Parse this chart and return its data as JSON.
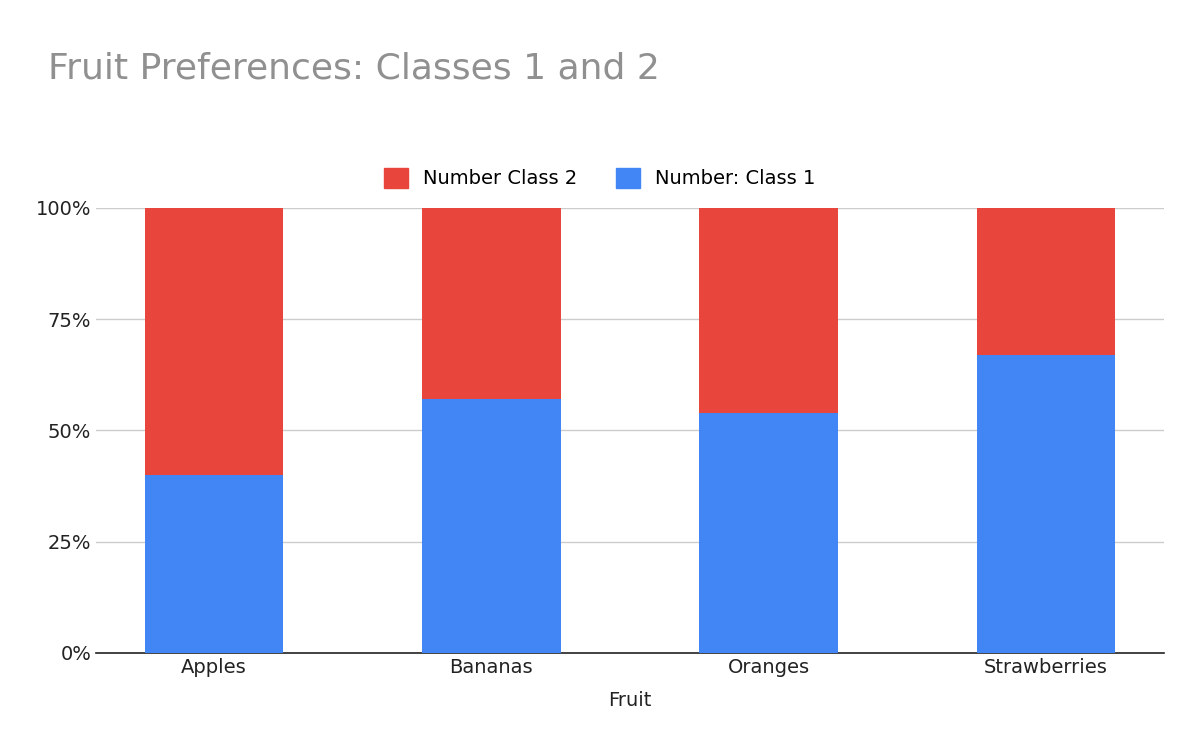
{
  "categories": [
    "Apples",
    "Bananas",
    "Oranges",
    "Strawberries"
  ],
  "class1_pct": [
    40,
    57,
    54,
    67
  ],
  "class2_pct": [
    60,
    43,
    46,
    33
  ],
  "color_class1": "#4285F4",
  "color_class2": "#E8453C",
  "title": "Fruit Preferences: Classes 1 and 2",
  "xlabel": "Fruit",
  "ylabel": "",
  "legend_class2": "Number Class 2",
  "legend_class1": "Number: Class 1",
  "title_color": "#909090",
  "title_fontsize": 26,
  "label_fontsize": 14,
  "tick_fontsize": 14,
  "legend_fontsize": 14,
  "background_color": "#ffffff",
  "yticks": [
    0,
    25,
    50,
    75,
    100
  ],
  "ytick_labels": [
    "0%",
    "25%",
    "50%",
    "75%",
    "100%"
  ],
  "grid_color": "#cccccc",
  "bar_width": 0.5
}
